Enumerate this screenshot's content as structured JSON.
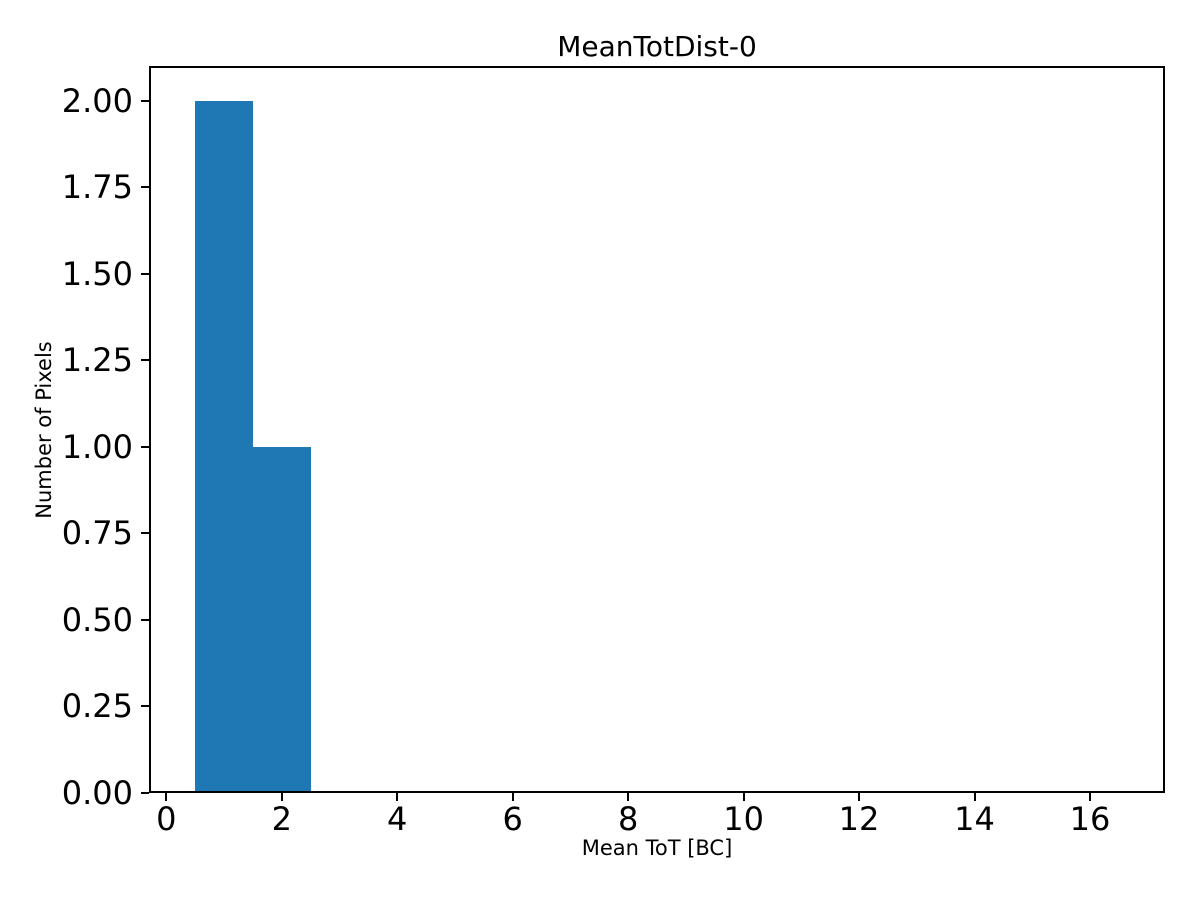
{
  "chart_data": {
    "type": "bar",
    "subtype": "histogram",
    "title": "MeanTotDist-0",
    "xlabel": "Mean ToT [BC]",
    "ylabel": "Number of Pixels",
    "bar_color": "#1f77b4",
    "axis_color": "#000000",
    "background_color": "#ffffff",
    "bin_edges": [
      0.5,
      1.5,
      2.5
    ],
    "counts": [
      2,
      1
    ],
    "xlim": [
      -0.3,
      17.3
    ],
    "ylim": [
      0,
      2.1
    ],
    "grid": false,
    "legend": null,
    "xticks": {
      "values": [
        0,
        2,
        4,
        6,
        8,
        10,
        12,
        14,
        16
      ],
      "labels": [
        "0",
        "2",
        "4",
        "6",
        "8",
        "10",
        "12",
        "14",
        "16"
      ]
    },
    "yticks": {
      "values": [
        0.0,
        0.25,
        0.5,
        0.75,
        1.0,
        1.25,
        1.5,
        1.75,
        2.0
      ],
      "labels": [
        "0.00",
        "0.25",
        "0.50",
        "0.75",
        "1.00",
        "1.25",
        "1.50",
        "1.75",
        "2.00"
      ]
    }
  }
}
